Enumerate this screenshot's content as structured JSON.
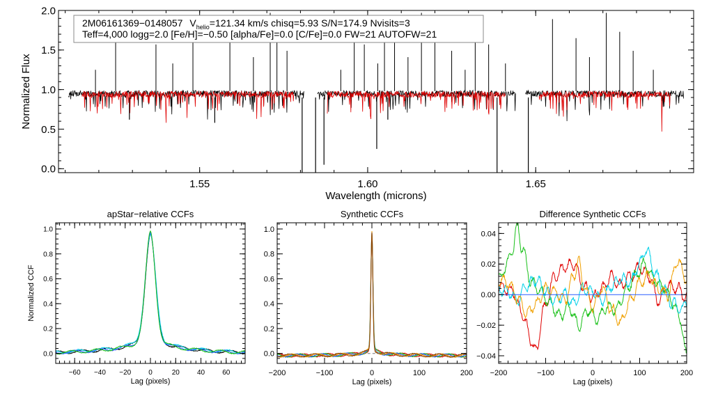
{
  "chart_data": [
    {
      "type": "line",
      "panel": "spectrum",
      "xlabel": "Wavelength (microns)",
      "ylabel": "Normalized Flux",
      "xlim": [
        1.508,
        1.697
      ],
      "ylim": [
        -0.05,
        2.0
      ],
      "xticks": [
        "1.55",
        "1.60",
        "1.65"
      ],
      "yticks": [
        "0.0",
        "0.5",
        "1.0",
        "1.5",
        "2.0"
      ],
      "series": [
        {
          "color": "#000000",
          "detector_ranges": [
            [
              1.511,
              1.581
            ],
            [
              1.585,
              1.644
            ],
            [
              1.647,
              1.694
            ]
          ],
          "continuum": 0.95
        },
        {
          "color": "#e00000",
          "detector_ranges": [
            [
              1.515,
              1.578
            ],
            [
              1.588,
              1.641
            ],
            [
              1.651,
              1.69
            ]
          ],
          "continuum": 0.94
        }
      ],
      "emission_spikes": [
        1.519,
        1.525,
        1.537,
        1.542,
        1.548,
        1.559,
        1.566,
        1.571,
        1.573,
        1.576,
        1.592,
        1.596,
        1.599,
        1.603,
        1.605,
        1.608,
        1.612,
        1.616,
        1.62,
        1.625,
        1.629,
        1.632,
        1.636,
        1.641,
        1.655,
        1.662,
        1.666,
        1.671,
        1.675,
        1.679,
        1.685
      ],
      "absorption_lines": [
        [
          1.5805,
          -0.05
        ],
        [
          1.5845,
          -0.05
        ],
        [
          1.6385,
          -0.05
        ],
        [
          1.6478,
          -0.05
        ],
        [
          1.587,
          0.05
        ],
        [
          1.6027,
          0.25
        ],
        [
          1.606,
          0.62
        ],
        [
          1.5291,
          0.62
        ],
        [
          1.5545,
          0.58
        ]
      ],
      "legend": {
        "line1": {
          "star": "2M06161369−0148057",
          "vlabel": "V",
          "vsub": "helio",
          "rest": "=121.34 km/s  chisq=5.93  S/N=174.9  Nvisits=3"
        },
        "line2": "Teff=4,000 logg=2.0 [Fe/H]=−0.50 [alpha/Fe]=0.0 [C/Fe]=0.0 FW=21 AUTOFW=21"
      }
    },
    {
      "type": "line",
      "panel": "apstar-ccf",
      "title": "apStar−relative CCFs",
      "xlabel": "Lag (pixels)",
      "ylabel": "Normalized CCF",
      "xlim": [
        -75,
        75
      ],
      "ylim": [
        -0.08,
        1.05
      ],
      "xticks": [
        "−60",
        "−40",
        "−20",
        "0",
        "20",
        "40",
        "60"
      ],
      "yticks": [
        "0.0",
        "0.2",
        "0.4",
        "0.6",
        "0.8",
        "1.0"
      ],
      "series": [
        {
          "color": "#000000",
          "peak": 0.98,
          "width": 4.0,
          "wing": 0.18
        },
        {
          "color": "#00d0e8",
          "peak": 0.97,
          "width": 4.2,
          "wing": 0.19
        },
        {
          "color": "#2a5cff",
          "peak": 0.98,
          "width": 4.0,
          "wing": 0.175
        },
        {
          "color": "#18c018",
          "peak": 1.0,
          "width": 3.9,
          "wing": 0.18
        }
      ]
    },
    {
      "type": "line",
      "panel": "synthetic-ccf",
      "title": "Synthetic CCFs",
      "xlabel": "Lag (pixels)",
      "ylabel": "",
      "xlim": [
        -200,
        200
      ],
      "ylim": [
        -0.08,
        1.05
      ],
      "xticks": [
        "−200",
        "−100",
        "0",
        "100",
        "200"
      ],
      "yticks": [
        "0.0",
        "0.2",
        "0.4",
        "0.6",
        "0.8",
        "1.0"
      ],
      "series": [
        {
          "color": "#e00000",
          "peak": 0.99,
          "width": 2.2,
          "wing": 0.09
        },
        {
          "color": "#18c018",
          "peak": 0.98,
          "width": 2.3,
          "wing": 0.09
        },
        {
          "color": "#2a5cff",
          "peak": 0.98,
          "width": 2.2,
          "wing": 0.085
        },
        {
          "color": "#f0a000",
          "peak": 1.0,
          "width": 2.1,
          "wing": 0.09
        },
        {
          "color": "#8a4000",
          "peak": 1.0,
          "width": 2.0,
          "wing": 0.09
        }
      ]
    },
    {
      "type": "line",
      "panel": "difference-ccf",
      "title": "Difference Synthetic CCFs",
      "xlabel": "Lag (pixels)",
      "ylabel": "",
      "xlim": [
        -200,
        200
      ],
      "ylim": [
        -0.045,
        0.047
      ],
      "xticks": [
        "−200",
        "−100",
        "0",
        "100",
        "200"
      ],
      "yticks": [
        "−0.04",
        "−0.02",
        "0.00",
        "0.02",
        "0.04"
      ],
      "series": [
        {
          "color": "#e00000",
          "anchors": [
            [
              -200,
              0.005
            ],
            [
              -170,
              0.002
            ],
            [
              -150,
              -0.012
            ],
            [
              -130,
              -0.03
            ],
            [
              -120,
              -0.038
            ],
            [
              -105,
              -0.01
            ],
            [
              -80,
              0.012
            ],
            [
              -60,
              0.018
            ],
            [
              -40,
              0.02
            ],
            [
              -20,
              0.006
            ],
            [
              0,
              -0.002
            ],
            [
              20,
              0.004
            ],
            [
              40,
              0.012
            ],
            [
              60,
              0.006
            ],
            [
              80,
              0.012
            ],
            [
              100,
              0.018
            ],
            [
              120,
              0.012
            ],
            [
              140,
              -0.004
            ],
            [
              160,
              0.006
            ],
            [
              180,
              0.004
            ],
            [
              200,
              -0.002
            ]
          ]
        },
        {
          "color": "#18c018",
          "anchors": [
            [
              -200,
              0.01
            ],
            [
              -185,
              0.018
            ],
            [
              -170,
              0.03
            ],
            [
              -160,
              0.045
            ],
            [
              -150,
              0.03
            ],
            [
              -130,
              0.008
            ],
            [
              -110,
              0.002
            ],
            [
              -90,
              -0.006
            ],
            [
              -70,
              -0.014
            ],
            [
              -50,
              -0.008
            ],
            [
              -30,
              -0.02
            ],
            [
              -10,
              -0.01
            ],
            [
              10,
              -0.016
            ],
            [
              30,
              -0.008
            ],
            [
              50,
              -0.01
            ],
            [
              70,
              0.002
            ],
            [
              90,
              0.012
            ],
            [
              110,
              0.02
            ],
            [
              130,
              0.01
            ],
            [
              150,
              0.005
            ],
            [
              170,
              -0.005
            ],
            [
              185,
              -0.015
            ],
            [
              200,
              -0.04
            ]
          ]
        },
        {
          "color": "#00d0e8",
          "anchors": [
            [
              -200,
              0.004
            ],
            [
              -180,
              0.002
            ],
            [
              -160,
              -0.004
            ],
            [
              -140,
              0.006
            ],
            [
              -120,
              0.01
            ],
            [
              -100,
              0.002
            ],
            [
              -80,
              -0.004
            ],
            [
              -60,
              0.0
            ],
            [
              -40,
              -0.006
            ],
            [
              -20,
              0.004
            ],
            [
              0,
              0.002
            ],
            [
              20,
              -0.004
            ],
            [
              40,
              0.006
            ],
            [
              60,
              0.01
            ],
            [
              80,
              0.008
            ],
            [
              100,
              0.02
            ],
            [
              115,
              0.03
            ],
            [
              130,
              0.016
            ],
            [
              150,
              0.004
            ],
            [
              170,
              -0.006
            ],
            [
              190,
              -0.01
            ],
            [
              200,
              -0.004
            ]
          ]
        },
        {
          "color": "#f0a000",
          "anchors": [
            [
              -200,
              0.01
            ],
            [
              -180,
              0.008
            ],
            [
              -160,
              -0.002
            ],
            [
              -140,
              -0.012
            ],
            [
              -120,
              -0.006
            ],
            [
              -100,
              0.004
            ],
            [
              -80,
              0.002
            ],
            [
              -60,
              -0.004
            ],
            [
              -40,
              0.012
            ],
            [
              -30,
              0.022
            ],
            [
              -20,
              0.006
            ],
            [
              0,
              -0.008
            ],
            [
              20,
              0.004
            ],
            [
              40,
              -0.01
            ],
            [
              60,
              -0.018
            ],
            [
              80,
              -0.004
            ],
            [
              100,
              0.008
            ],
            [
              120,
              0.012
            ],
            [
              140,
              0.004
            ],
            [
              160,
              0.0
            ],
            [
              180,
              0.022
            ],
            [
              200,
              0.01
            ]
          ]
        },
        {
          "color": "#2a5cff",
          "anchors": [
            [
              -200,
              0.0
            ],
            [
              200,
              0.0
            ]
          ],
          "flat": true
        }
      ]
    }
  ]
}
